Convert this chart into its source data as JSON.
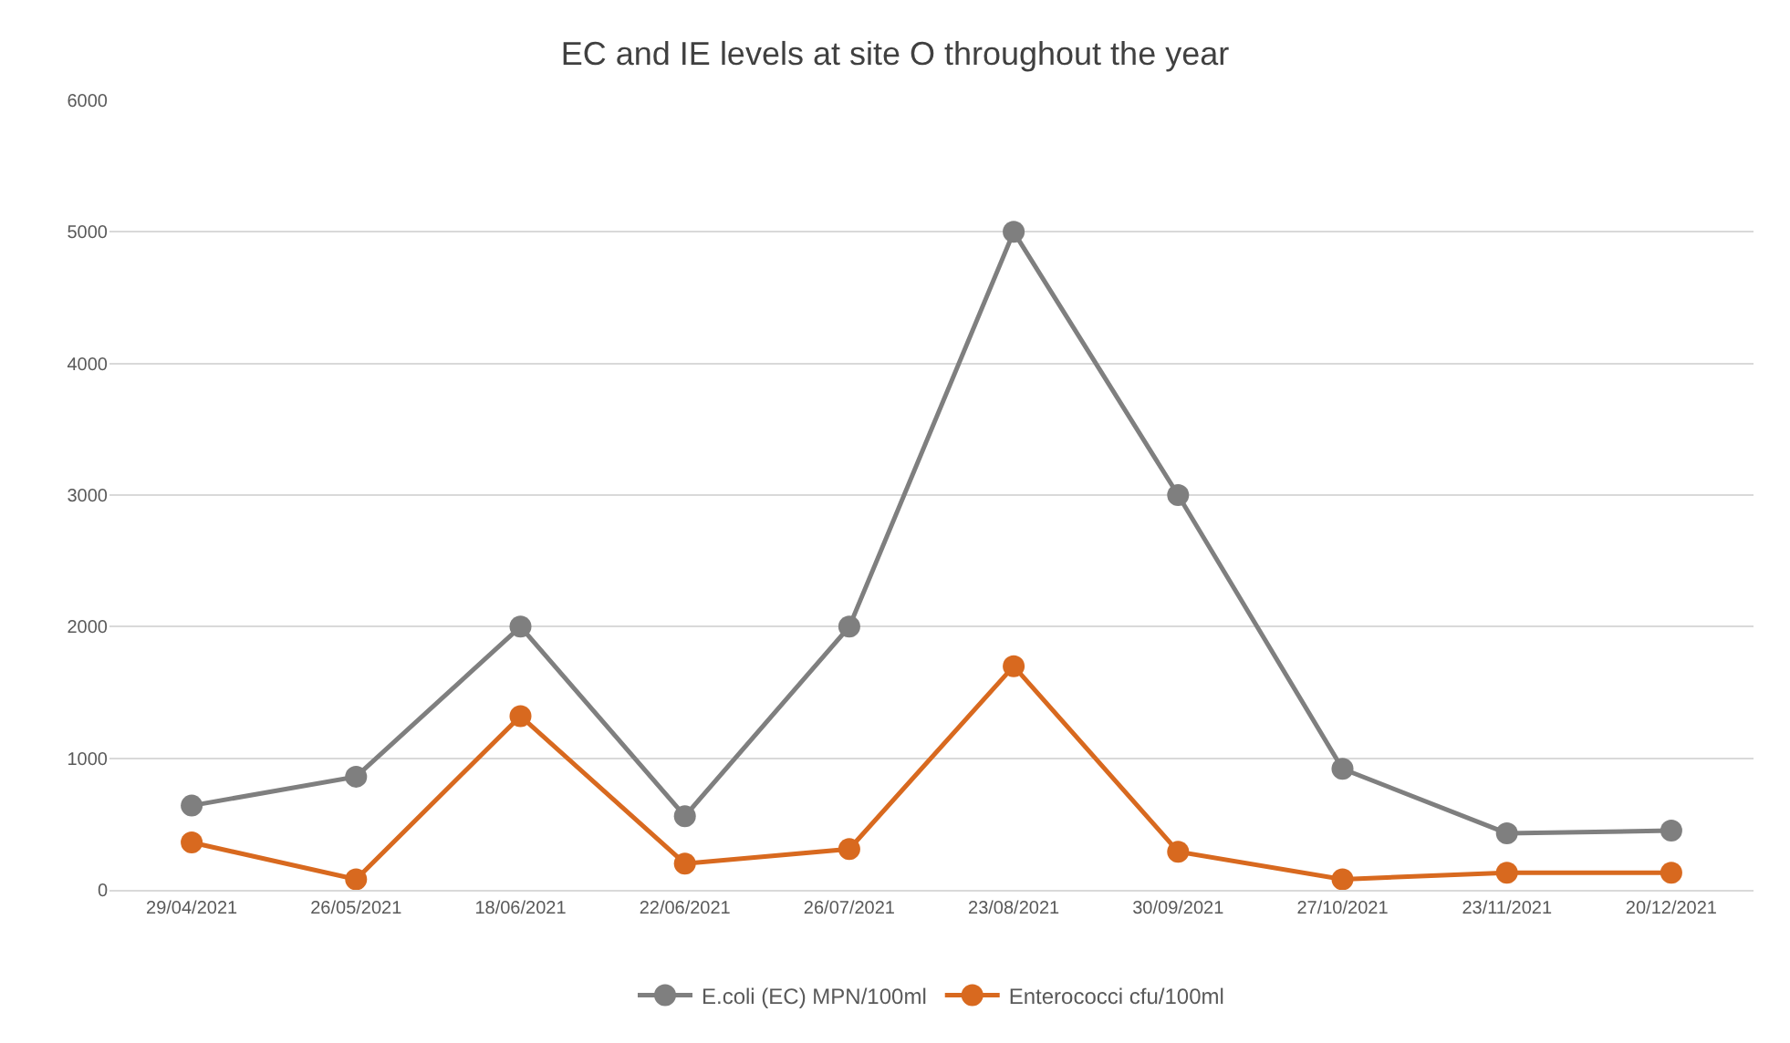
{
  "chart_data": {
    "type": "line",
    "title": "EC and IE levels at site O throughout the year",
    "categories": [
      "29/04/2021",
      "26/05/2021",
      "18/06/2021",
      "22/06/2021",
      "26/07/2021",
      "23/08/2021",
      "30/09/2021",
      "27/10/2021",
      "23/11/2021",
      "20/12/2021"
    ],
    "series": [
      {
        "name": "E.coli (EC) MPN/100ml",
        "color": "#7f7f7f",
        "values": [
          640,
          860,
          2000,
          560,
          2000,
          5000,
          3000,
          920,
          430,
          450
        ]
      },
      {
        "name": "Enterococci cfu/100ml",
        "color": "#d8691f",
        "values": [
          360,
          80,
          1320,
          200,
          310,
          1700,
          290,
          80,
          130,
          130
        ]
      }
    ],
    "ylim": [
      0,
      6000
    ],
    "yticks": [
      0,
      1000,
      2000,
      3000,
      4000,
      5000,
      6000
    ],
    "grid": "y",
    "legend": "bottom",
    "marker": "circle",
    "line_style": "solid"
  }
}
